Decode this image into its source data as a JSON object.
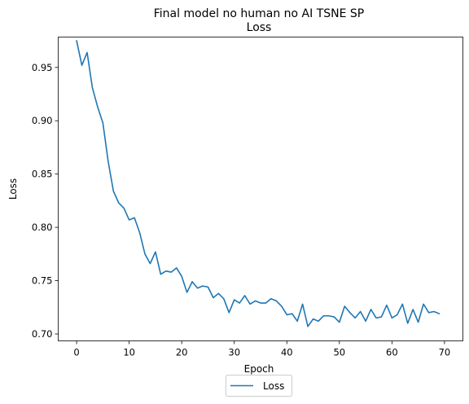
{
  "chart_data": {
    "type": "line",
    "title_line1": "Final model no human no AI TSNE SP",
    "title_line2": "Loss",
    "xlabel": "Epoch",
    "ylabel": "Loss",
    "xlim": [
      -3.5,
      73.5
    ],
    "ylim": [
      0.6935,
      0.9785
    ],
    "xticks": [
      0,
      10,
      20,
      30,
      40,
      50,
      60,
      70
    ],
    "yticks": [
      0.7,
      0.75,
      0.8,
      0.85,
      0.9,
      0.95
    ],
    "ytick_labels": [
      "0.70",
      "0.75",
      "0.80",
      "0.85",
      "0.90",
      "0.95"
    ],
    "legend_position": "lower center, below axes",
    "series": [
      {
        "name": "Loss",
        "color": "#1f77b4",
        "x": [
          0,
          1,
          2,
          3,
          4,
          5,
          6,
          7,
          8,
          9,
          10,
          11,
          12,
          13,
          14,
          15,
          16,
          17,
          18,
          19,
          20,
          21,
          22,
          23,
          24,
          25,
          26,
          27,
          28,
          29,
          30,
          31,
          32,
          33,
          34,
          35,
          36,
          37,
          38,
          39,
          40,
          41,
          42,
          43,
          44,
          45,
          46,
          47,
          48,
          49,
          50,
          51,
          52,
          53,
          54,
          55,
          56,
          57,
          58,
          59,
          60,
          61,
          62,
          63,
          64,
          65,
          66,
          67,
          68,
          69
        ],
        "y": [
          0.975,
          0.952,
          0.964,
          0.931,
          0.913,
          0.898,
          0.862,
          0.834,
          0.823,
          0.818,
          0.807,
          0.809,
          0.795,
          0.775,
          0.766,
          0.777,
          0.756,
          0.759,
          0.758,
          0.762,
          0.754,
          0.739,
          0.749,
          0.743,
          0.745,
          0.744,
          0.734,
          0.738,
          0.733,
          0.72,
          0.732,
          0.729,
          0.736,
          0.728,
          0.731,
          0.729,
          0.729,
          0.733,
          0.731,
          0.726,
          0.718,
          0.719,
          0.712,
          0.728,
          0.707,
          0.714,
          0.712,
          0.717,
          0.717,
          0.716,
          0.711,
          0.726,
          0.72,
          0.715,
          0.721,
          0.712,
          0.723,
          0.715,
          0.716,
          0.727,
          0.715,
          0.718,
          0.728,
          0.71,
          0.723,
          0.711,
          0.728,
          0.72,
          0.721,
          0.719
        ]
      }
    ]
  }
}
